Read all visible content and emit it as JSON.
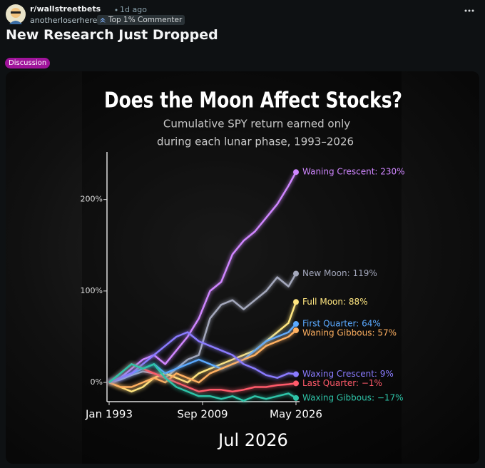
{
  "post": {
    "subreddit": "r/wallstreetbets",
    "time": "1d ago",
    "author": "anotherloserhere",
    "author_flair": "Top 1% Commenter",
    "title": "New Research Just Dropped",
    "flair": "Discussion"
  },
  "chart_data": {
    "type": "line",
    "title": "Does the Moon Affect Stocks?",
    "subtitle": [
      "Cumulative SPY return earned only",
      "during each lunar phase, 1993–2026"
    ],
    "annotation": "Jul 2026",
    "x": [
      "1993-01",
      "1995-01",
      "1997-01",
      "1999-01",
      "2001-01",
      "2003-01",
      "2005-01",
      "2007-01",
      "2009-01",
      "2011-01",
      "2013-01",
      "2015-01",
      "2017-01",
      "2019-01",
      "2021-01",
      "2023-01",
      "2025-01",
      "2026-05"
    ],
    "xlim": [
      "1993-01",
      "2026-05"
    ],
    "xticks": [
      {
        "value": "1993-01",
        "label": "Jan 1993"
      },
      {
        "value": "2009-09",
        "label": "Sep 2009"
      },
      {
        "value": "2026-05",
        "label": "May 2026"
      }
    ],
    "ylim": [
      -21,
      252
    ],
    "yticks": [
      {
        "value": 0,
        "label": "0%"
      },
      {
        "value": 100,
        "label": "100%"
      },
      {
        "value": 200,
        "label": "200%"
      }
    ],
    "series": [
      {
        "name": "Waning Crescent: 230%",
        "color": "#cf86ff",
        "values": [
          0,
          5,
          15,
          25,
          30,
          20,
          35,
          50,
          70,
          100,
          110,
          140,
          155,
          165,
          180,
          195,
          215,
          230
        ]
      },
      {
        "name": "New Moon: 119%",
        "color": "#a4a8bc",
        "values": [
          0,
          3,
          8,
          12,
          10,
          5,
          15,
          25,
          30,
          70,
          85,
          90,
          80,
          90,
          100,
          115,
          105,
          119
        ]
      },
      {
        "name": "Full Moon: 88%",
        "color": "#ffe680",
        "values": [
          0,
          -5,
          -10,
          -5,
          5,
          10,
          5,
          0,
          10,
          15,
          20,
          25,
          30,
          35,
          45,
          55,
          65,
          88
        ]
      },
      {
        "name": "First Quarter: 64%",
        "color": "#5aa9ff",
        "values": [
          0,
          5,
          10,
          15,
          20,
          10,
          15,
          20,
          25,
          20,
          15,
          20,
          25,
          35,
          45,
          50,
          55,
          64
        ]
      },
      {
        "name": "Waning Gibbous: 57%",
        "color": "#ffb060",
        "values": [
          0,
          -5,
          -5,
          0,
          5,
          0,
          10,
          5,
          0,
          10,
          15,
          20,
          25,
          30,
          40,
          45,
          50,
          57
        ]
      },
      {
        "name": "Waxing Crescent: 9%",
        "color": "#8a7bff",
        "values": [
          0,
          5,
          10,
          20,
          30,
          40,
          50,
          55,
          45,
          40,
          35,
          30,
          20,
          15,
          8,
          5,
          10,
          9
        ]
      },
      {
        "name": "Last Quarter: −1%",
        "color": "#ff5a6a",
        "values": [
          0,
          10,
          20,
          15,
          10,
          5,
          0,
          -5,
          -10,
          -8,
          -8,
          -10,
          -8,
          -5,
          -5,
          -3,
          -2,
          -1
        ]
      },
      {
        "name": "Waxing Gibbous: −17%",
        "color": "#2ec4a8",
        "values": [
          0,
          10,
          20,
          15,
          20,
          5,
          -5,
          -10,
          -15,
          -15,
          -18,
          -15,
          -20,
          -15,
          -18,
          -15,
          -12,
          -17
        ]
      }
    ]
  }
}
